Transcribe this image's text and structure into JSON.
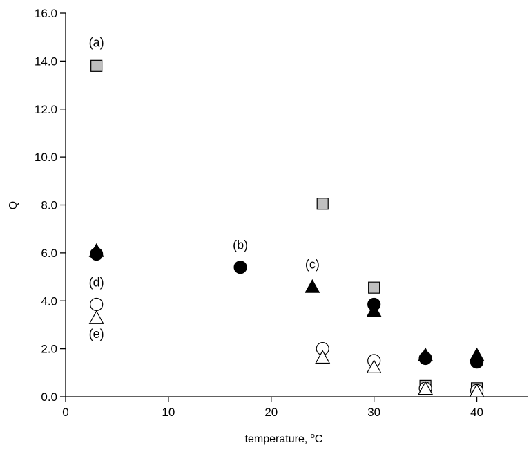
{
  "chart_data": {
    "type": "scatter",
    "title": "",
    "xlabel": "temperature, ",
    "xlabel_sup": "o",
    "xlabel_unit": "C",
    "ylabel": "Q",
    "xlim": [
      0,
      45
    ],
    "ylim": [
      0,
      16
    ],
    "x_ticks": [
      0,
      10,
      20,
      30,
      40
    ],
    "x_tick_labels": [
      "0",
      "10",
      "20",
      "30",
      "40"
    ],
    "y_ticks": [
      0,
      2,
      4,
      6,
      8,
      10,
      12,
      14,
      16
    ],
    "y_tick_labels": [
      "0.0",
      "2.0",
      "4.0",
      "6.0",
      "8.0",
      "10.0",
      "12.0",
      "14.0",
      "16.0"
    ],
    "grid": false,
    "legend": "none",
    "series": [
      {
        "marker": "square",
        "fill": "#bfbfbf",
        "stroke": "#000000",
        "points": [
          [
            3,
            13.8
          ],
          [
            25,
            8.05
          ],
          [
            30,
            4.55
          ],
          [
            35,
            0.45
          ],
          [
            40,
            0.35
          ]
        ]
      },
      {
        "marker": "circle",
        "fill": "#000000",
        "stroke": "#000000",
        "points": [
          [
            3,
            5.95
          ],
          [
            17,
            5.4
          ],
          [
            30,
            3.85
          ],
          [
            35,
            1.6
          ],
          [
            40,
            1.45
          ]
        ]
      },
      {
        "marker": "triangle",
        "fill": "#000000",
        "stroke": "#000000",
        "points": [
          [
            3,
            6.05
          ],
          [
            24,
            4.55
          ],
          [
            30,
            3.55
          ],
          [
            35,
            1.7
          ],
          [
            40,
            1.7
          ]
        ]
      },
      {
        "marker": "circle",
        "fill": "#ffffff",
        "stroke": "#000000",
        "points": [
          [
            3,
            3.85
          ],
          [
            25,
            2.0
          ],
          [
            30,
            1.5
          ],
          [
            35,
            0.35
          ],
          [
            40,
            0.25
          ]
        ]
      },
      {
        "marker": "triangle",
        "fill": "#ffffff",
        "stroke": "#000000",
        "points": [
          [
            3,
            3.25
          ],
          [
            25,
            1.6
          ],
          [
            30,
            1.2
          ],
          [
            35,
            0.3
          ],
          [
            40,
            0.2
          ]
        ]
      }
    ],
    "annotations": [
      {
        "text": "(a)",
        "x": 3,
        "y": 14.6
      },
      {
        "text": "(b)",
        "x": 17,
        "y": 6.15
      },
      {
        "text": "(c)",
        "x": 24,
        "y": 5.35
      },
      {
        "text": "(d)",
        "x": 3,
        "y": 4.6
      },
      {
        "text": "(e)",
        "x": 3,
        "y": 2.45
      }
    ]
  }
}
